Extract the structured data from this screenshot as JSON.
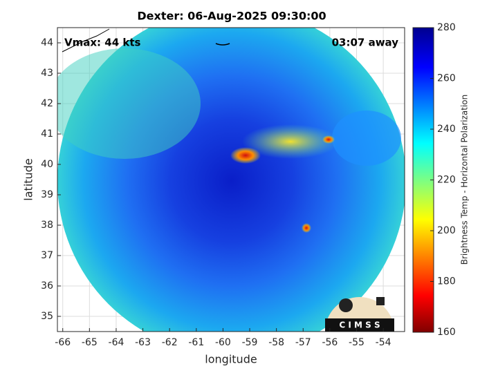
{
  "chart_data": {
    "type": "swath",
    "title": "Dexter: 06-Aug-2025 09:30:00",
    "xlabel": "longitude",
    "ylabel": "latitude",
    "xlim": [
      -66.2,
      -53.2
    ],
    "xticks": [
      -66,
      -65,
      -64,
      -63,
      -62,
      -61,
      -60,
      -59,
      -58,
      -57,
      -56,
      -55,
      -54
    ],
    "ylim": [
      34.5,
      44.5
    ],
    "yticks": [
      35,
      36,
      37,
      38,
      39,
      40,
      41,
      42,
      43,
      44
    ],
    "grid": true,
    "annotations": [
      "Vmax: 44 kts",
      "03:07 away"
    ],
    "logo": "C I M S S",
    "colorbar": {
      "label": "Brightness Temp - Horizontal Polarization",
      "lim": [
        160,
        280
      ],
      "ticks": [
        160,
        180,
        200,
        220,
        240,
        260,
        280
      ]
    }
  }
}
